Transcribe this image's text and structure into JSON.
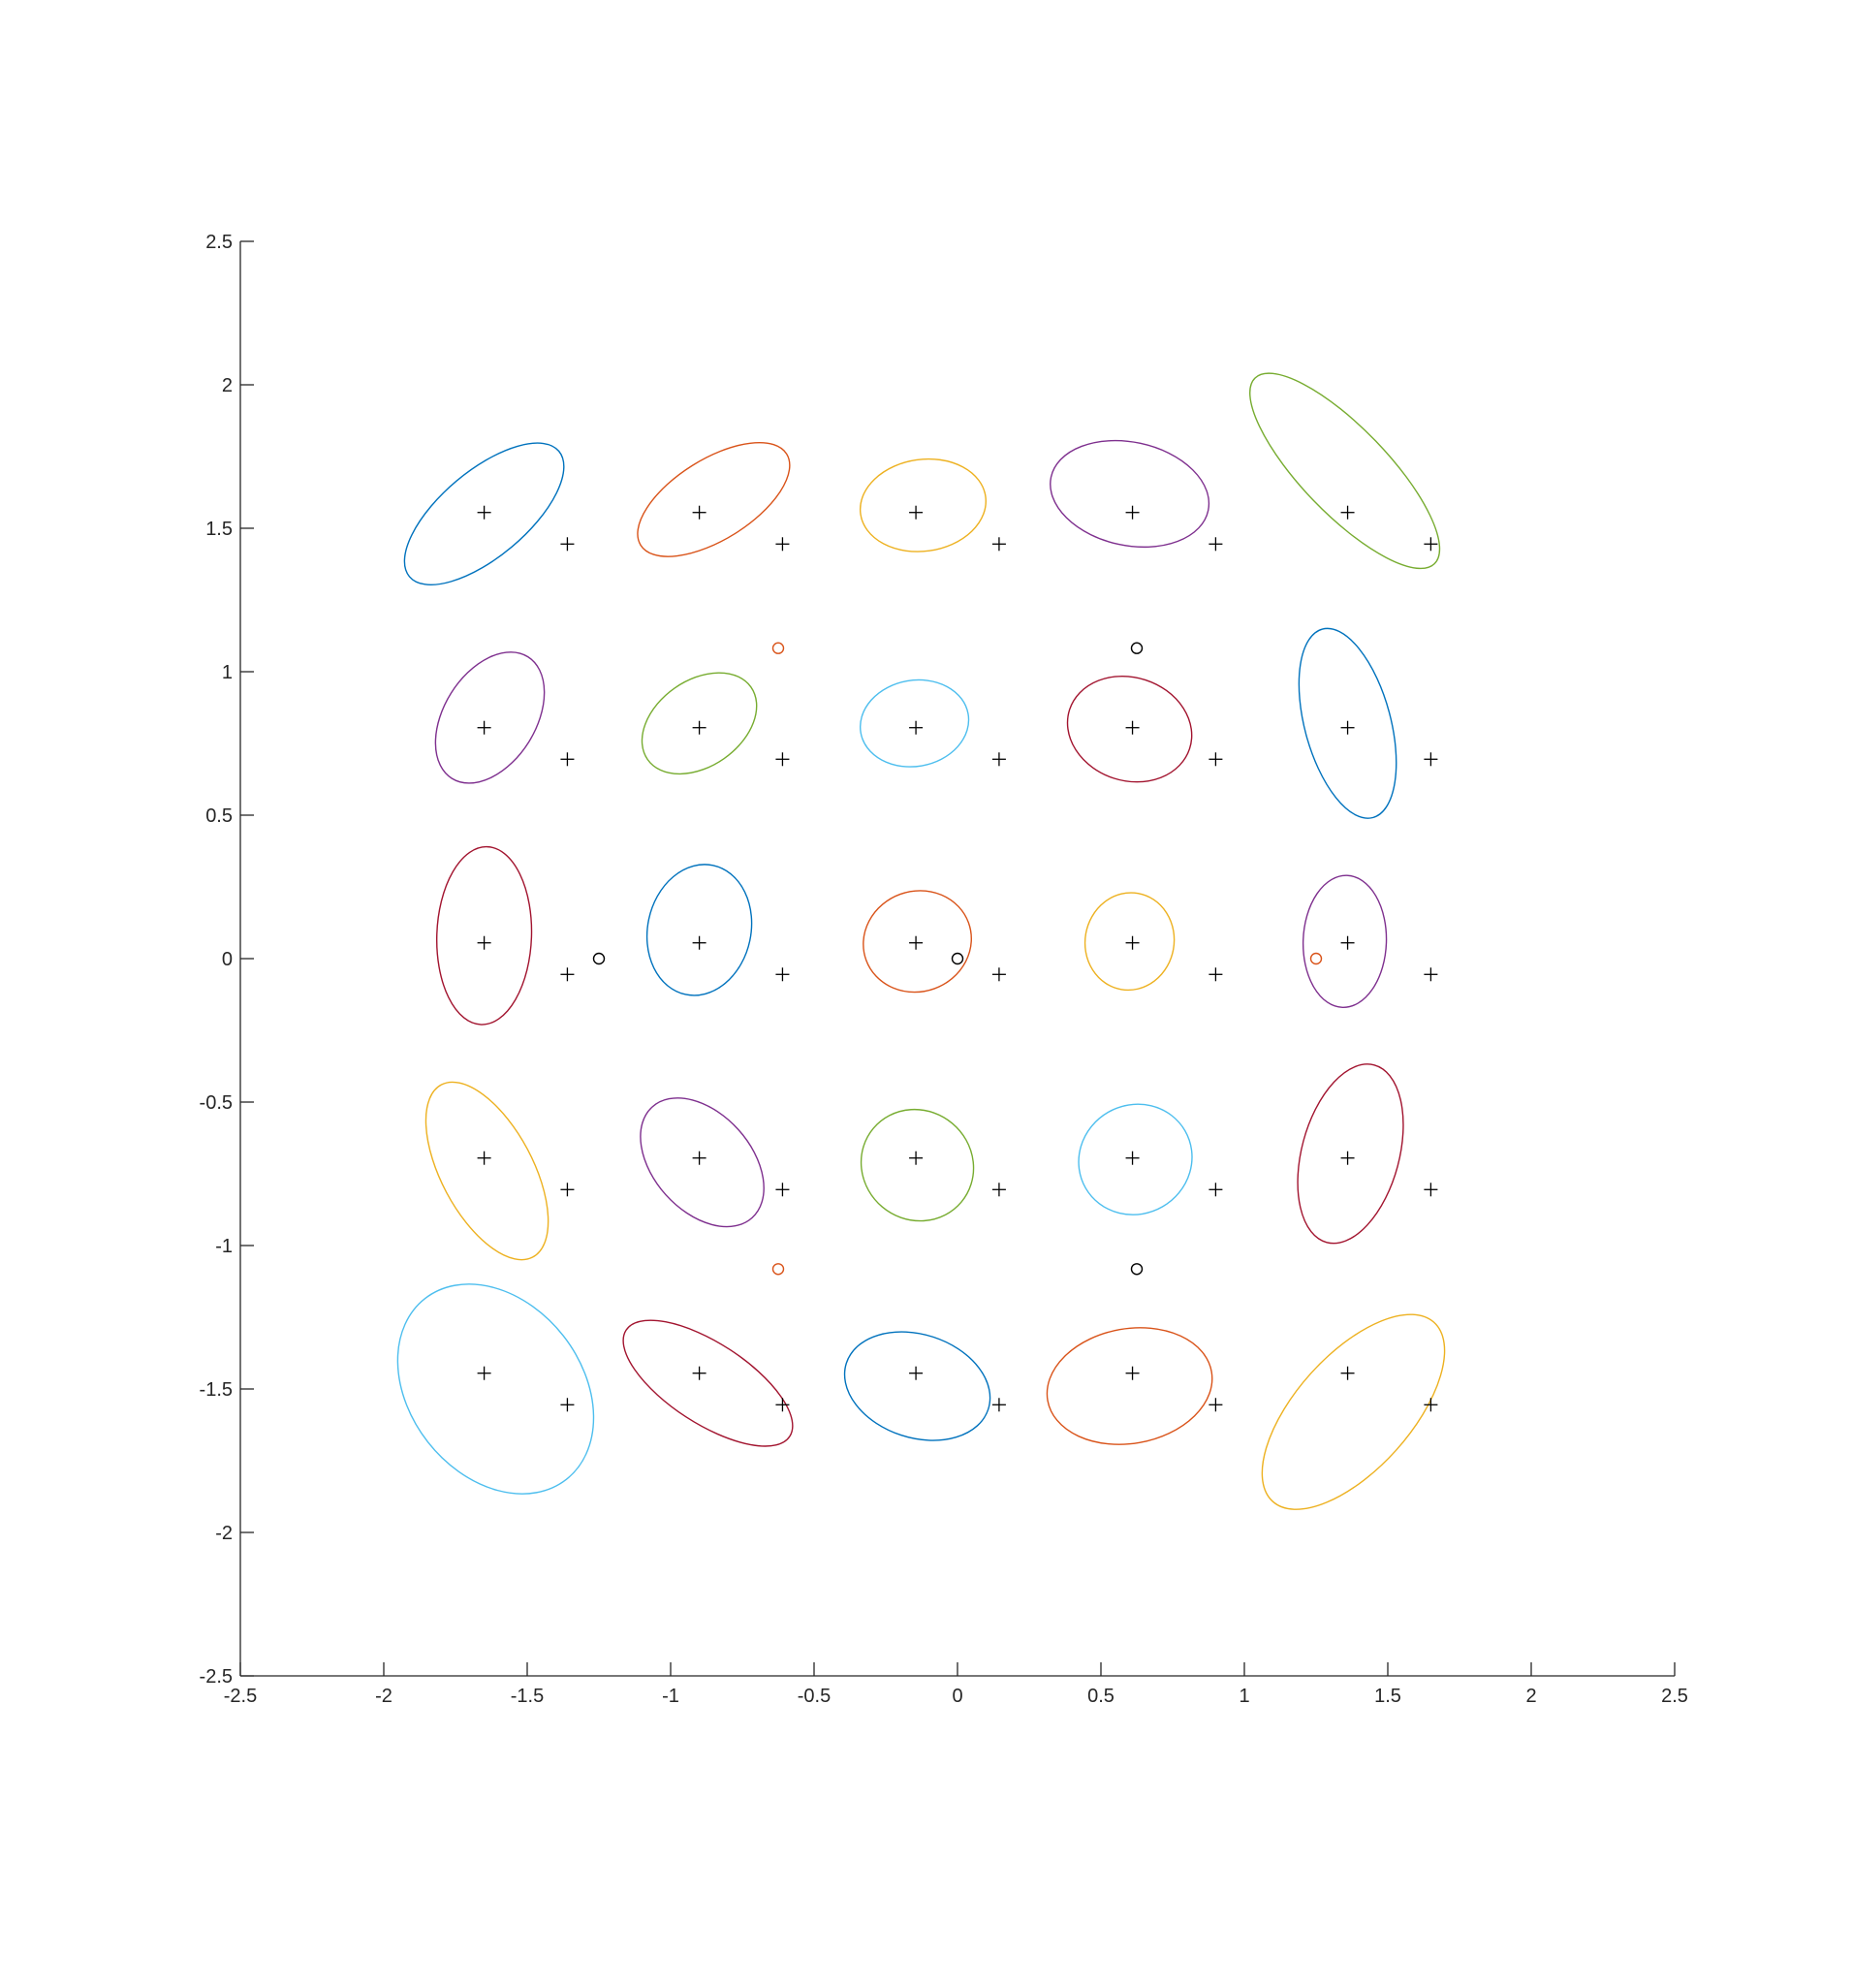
{
  "chart_data": {
    "type": "scatter",
    "title": "",
    "xlabel": "",
    "ylabel": "",
    "xlim": [
      -2.5,
      2.5
    ],
    "ylim": [
      -2.5,
      2.5
    ],
    "xticks": [
      "-2.5",
      "-2",
      "-1.5",
      "-1",
      "-0.5",
      "0",
      "0.5",
      "1",
      "1.5",
      "2",
      "2.5"
    ],
    "yticks": [
      "2.5",
      "2",
      "1.5",
      "1",
      "0.5",
      "0",
      "-0.5",
      "-1",
      "-1.5",
      "-2",
      "-2.5"
    ],
    "grid": false,
    "legend": "none",
    "ellipses": [
      {
        "cx": -1.65,
        "cy": 1.55,
        "a": 0.34,
        "b": 0.15,
        "angle": 40,
        "color": "#0072BD"
      },
      {
        "cx": -0.85,
        "cy": 1.6,
        "a": 0.3,
        "b": 0.14,
        "angle": 32,
        "color": "#D95319"
      },
      {
        "cx": -0.12,
        "cy": 1.58,
        "a": 0.22,
        "b": 0.16,
        "angle": 8,
        "color": "#EDB120"
      },
      {
        "cx": 0.6,
        "cy": 1.62,
        "a": 0.28,
        "b": 0.18,
        "angle": -12,
        "color": "#7E2F8E"
      },
      {
        "cx": 1.35,
        "cy": 1.7,
        "a": 0.45,
        "b": 0.15,
        "angle": -46,
        "color": "#77AC30"
      },
      {
        "cx": -1.63,
        "cy": 0.84,
        "a": 0.25,
        "b": 0.16,
        "angle": 58,
        "color": "#7E2F8E"
      },
      {
        "cx": -0.9,
        "cy": 0.82,
        "a": 0.22,
        "b": 0.15,
        "angle": 35,
        "color": "#77AC30"
      },
      {
        "cx": -0.15,
        "cy": 0.82,
        "a": 0.19,
        "b": 0.15,
        "angle": 10,
        "color": "#4DBEEE"
      },
      {
        "cx": 0.6,
        "cy": 0.8,
        "a": 0.22,
        "b": 0.18,
        "angle": -18,
        "color": "#A2142F"
      },
      {
        "cx": 1.36,
        "cy": 0.82,
        "a": 0.34,
        "b": 0.15,
        "angle": -75,
        "color": "#0072BD"
      },
      {
        "cx": -1.65,
        "cy": 0.08,
        "a": 0.31,
        "b": 0.165,
        "angle": 88,
        "color": "#A2142F"
      },
      {
        "cx": -0.9,
        "cy": 0.1,
        "a": 0.23,
        "b": 0.18,
        "angle": 78,
        "color": "#0072BD"
      },
      {
        "cx": -0.14,
        "cy": 0.06,
        "a": 0.19,
        "b": 0.175,
        "angle": 20,
        "color": "#D95319"
      },
      {
        "cx": 0.6,
        "cy": 0.06,
        "a": 0.17,
        "b": 0.155,
        "angle": 80,
        "color": "#EDB120"
      },
      {
        "cx": 1.35,
        "cy": 0.06,
        "a": 0.23,
        "b": 0.145,
        "angle": 88,
        "color": "#7E2F8E"
      },
      {
        "cx": -1.64,
        "cy": -0.74,
        "a": 0.34,
        "b": 0.16,
        "angle": -62,
        "color": "#EDB120"
      },
      {
        "cx": -0.89,
        "cy": -0.71,
        "a": 0.26,
        "b": 0.17,
        "angle": -48,
        "color": "#7E2F8E"
      },
      {
        "cx": -0.14,
        "cy": -0.72,
        "a": 0.2,
        "b": 0.19,
        "angle": -40,
        "color": "#77AC30"
      },
      {
        "cx": 0.62,
        "cy": -0.7,
        "a": 0.2,
        "b": 0.19,
        "angle": 30,
        "color": "#4DBEEE"
      },
      {
        "cx": 1.37,
        "cy": -0.68,
        "a": 0.32,
        "b": 0.17,
        "angle": 75,
        "color": "#A2142F"
      },
      {
        "cx": -1.61,
        "cy": -1.5,
        "a": 0.4,
        "b": 0.3,
        "angle": -52,
        "color": "#4DBEEE"
      },
      {
        "cx": -0.87,
        "cy": -1.48,
        "a": 0.34,
        "b": 0.14,
        "angle": -33,
        "color": "#A2142F"
      },
      {
        "cx": -0.14,
        "cy": -1.49,
        "a": 0.26,
        "b": 0.18,
        "angle": -18,
        "color": "#0072BD"
      },
      {
        "cx": 0.6,
        "cy": -1.49,
        "a": 0.29,
        "b": 0.2,
        "angle": 10,
        "color": "#D95319"
      },
      {
        "cx": 1.38,
        "cy": -1.58,
        "a": 0.42,
        "b": 0.2,
        "angle": 48,
        "color": "#EDB120"
      }
    ],
    "plus_markers": {
      "color": "#000000",
      "points": [
        [
          -1.65,
          1.555
        ],
        [
          -1.36,
          1.445
        ],
        [
          -0.9,
          1.555
        ],
        [
          -0.61,
          1.445
        ],
        [
          -0.145,
          1.555
        ],
        [
          0.145,
          1.445
        ],
        [
          0.61,
          1.555
        ],
        [
          0.9,
          1.445
        ],
        [
          1.36,
          1.555
        ],
        [
          1.65,
          1.445
        ],
        [
          -1.65,
          0.805
        ],
        [
          -1.36,
          0.695
        ],
        [
          -0.9,
          0.805
        ],
        [
          -0.61,
          0.695
        ],
        [
          -0.145,
          0.805
        ],
        [
          0.145,
          0.695
        ],
        [
          0.61,
          0.805
        ],
        [
          0.9,
          0.695
        ],
        [
          1.36,
          0.805
        ],
        [
          1.65,
          0.695
        ],
        [
          -1.65,
          0.055
        ],
        [
          -1.36,
          -0.055
        ],
        [
          -0.9,
          0.055
        ],
        [
          -0.61,
          -0.055
        ],
        [
          -0.145,
          0.055
        ],
        [
          0.145,
          -0.055
        ],
        [
          0.61,
          0.055
        ],
        [
          0.9,
          -0.055
        ],
        [
          1.36,
          0.055
        ],
        [
          1.65,
          -0.055
        ],
        [
          -1.65,
          -0.695
        ],
        [
          -1.36,
          -0.805
        ],
        [
          -0.9,
          -0.695
        ],
        [
          -0.61,
          -0.805
        ],
        [
          -0.145,
          -0.695
        ],
        [
          0.145,
          -0.805
        ],
        [
          0.61,
          -0.695
        ],
        [
          0.9,
          -0.805
        ],
        [
          1.36,
          -0.695
        ],
        [
          1.65,
          -0.805
        ],
        [
          -1.65,
          -1.445
        ],
        [
          -1.36,
          -1.555
        ],
        [
          -0.9,
          -1.445
        ],
        [
          -0.61,
          -1.555
        ],
        [
          -0.145,
          -1.445
        ],
        [
          0.145,
          -1.555
        ],
        [
          0.61,
          -1.445
        ],
        [
          0.9,
          -1.555
        ],
        [
          1.36,
          -1.445
        ],
        [
          1.65,
          -1.555
        ]
      ]
    },
    "circle_markers": [
      {
        "x": -0.625,
        "y": 1.082,
        "color": "#D95319"
      },
      {
        "x": 0.625,
        "y": 1.082,
        "color": "#000000"
      },
      {
        "x": -1.25,
        "y": 0.0,
        "color": "#000000"
      },
      {
        "x": 0.0,
        "y": 0.0,
        "color": "#000000"
      },
      {
        "x": 1.25,
        "y": 0.0,
        "color": "#D95319"
      },
      {
        "x": -0.625,
        "y": -1.082,
        "color": "#D95319"
      },
      {
        "x": 0.625,
        "y": -1.082,
        "color": "#000000"
      }
    ]
  }
}
